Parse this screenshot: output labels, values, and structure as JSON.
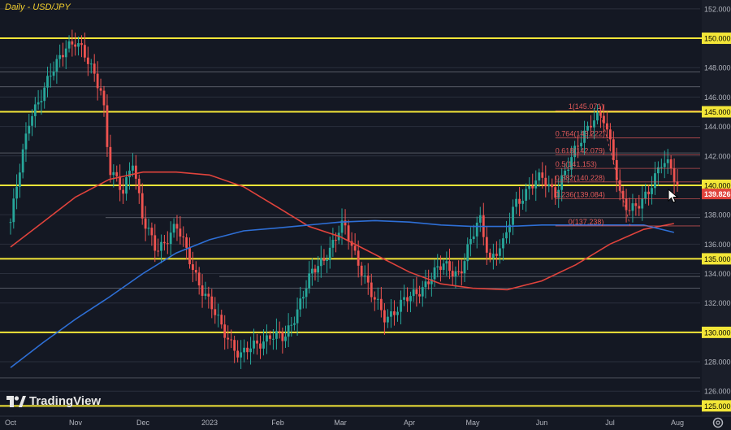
{
  "title": "Daily - USD/JPY",
  "brand": "TradingView",
  "colors": {
    "background": "#141823",
    "grid": "#2a2f3c",
    "up": "#27a69a",
    "down": "#ef5350",
    "level": "#f3e638",
    "ma_fast": "#e0433c",
    "ma_slow": "#2e6fd6",
    "fib": "#e35a5a",
    "axis_text": "#b2b5be"
  },
  "chart_data": {
    "type": "candlestick",
    "title": "Daily - USD/JPY",
    "x": [
      "Oct",
      "Nov",
      "Dec",
      "2023",
      "Feb",
      "Mar",
      "Apr",
      "May",
      "Jun",
      "Jul",
      "Aug"
    ],
    "y_ticks": [
      "152.000",
      "150.000",
      "148.000",
      "146.000",
      "145.000",
      "144.000",
      "142.000",
      "140.000",
      "139.826",
      "138.000",
      "136.000",
      "135.000",
      "134.000",
      "132.000",
      "130.000",
      "128.000",
      "126.000",
      "125.000"
    ],
    "ylim": [
      124.3,
      152.6
    ],
    "last_price": 139.826,
    "key_levels": [
      150.0,
      145.0,
      140.0,
      135.0,
      130.0,
      125.0
    ],
    "fibonacci": [
      {
        "label": "1(145.071)",
        "value": 145.071
      },
      {
        "label": "0.764(143.222)",
        "value": 143.222
      },
      {
        "label": "0.618(142.079)",
        "value": 142.079
      },
      {
        "label": "0.5(141.153)",
        "value": 141.153
      },
      {
        "label": "0.382(140.228)",
        "value": 140.228
      },
      {
        "label": "0.236(139.084)",
        "value": 139.084
      },
      {
        "label": "0(137.238)",
        "value": 137.238
      }
    ],
    "anchors": [
      {
        "x": 0.0,
        "y": 137.5
      },
      {
        "x": 0.3,
        "y": 144.8
      },
      {
        "x": 0.5,
        "y": 146.3
      },
      {
        "x": 0.85,
        "y": 149.6
      },
      {
        "x": 1.0,
        "y": 149.7
      },
      {
        "x": 1.25,
        "y": 147.9
      },
      {
        "x": 1.4,
        "y": 146.4
      },
      {
        "x": 1.5,
        "y": 141.0
      },
      {
        "x": 1.7,
        "y": 139.5
      },
      {
        "x": 1.85,
        "y": 141.9
      },
      {
        "x": 2.0,
        "y": 137.5
      },
      {
        "x": 2.2,
        "y": 135.6
      },
      {
        "x": 2.5,
        "y": 137.2
      },
      {
        "x": 2.7,
        "y": 135.0
      },
      {
        "x": 2.9,
        "y": 132.8
      },
      {
        "x": 3.1,
        "y": 131.0
      },
      {
        "x": 3.3,
        "y": 129.5
      },
      {
        "x": 3.45,
        "y": 128.3
      },
      {
        "x": 3.7,
        "y": 129.3
      },
      {
        "x": 3.9,
        "y": 129.8
      },
      {
        "x": 4.1,
        "y": 129.5
      },
      {
        "x": 4.3,
        "y": 131.5
      },
      {
        "x": 4.55,
        "y": 134.0
      },
      {
        "x": 4.85,
        "y": 135.8
      },
      {
        "x": 5.05,
        "y": 137.3
      },
      {
        "x": 5.25,
        "y": 135.0
      },
      {
        "x": 5.45,
        "y": 132.5
      },
      {
        "x": 5.65,
        "y": 131.0
      },
      {
        "x": 5.9,
        "y": 132.0
      },
      {
        "x": 6.1,
        "y": 132.6
      },
      {
        "x": 6.3,
        "y": 133.6
      },
      {
        "x": 6.55,
        "y": 134.6
      },
      {
        "x": 6.8,
        "y": 134.0
      },
      {
        "x": 7.0,
        "y": 136.5
      },
      {
        "x": 7.1,
        "y": 137.9
      },
      {
        "x": 7.25,
        "y": 135.0
      },
      {
        "x": 7.45,
        "y": 135.9
      },
      {
        "x": 7.6,
        "y": 138.8
      },
      {
        "x": 7.8,
        "y": 139.7
      },
      {
        "x": 8.0,
        "y": 140.5
      },
      {
        "x": 8.2,
        "y": 139.6
      },
      {
        "x": 8.4,
        "y": 141.3
      },
      {
        "x": 8.6,
        "y": 143.5
      },
      {
        "x": 8.75,
        "y": 144.6
      },
      {
        "x": 8.9,
        "y": 144.5
      },
      {
        "x": 9.05,
        "y": 142.0
      },
      {
        "x": 9.15,
        "y": 139.5
      },
      {
        "x": 9.3,
        "y": 138.2
      },
      {
        "x": 9.45,
        "y": 138.6
      },
      {
        "x": 9.6,
        "y": 140.0
      },
      {
        "x": 9.75,
        "y": 141.6
      },
      {
        "x": 9.9,
        "y": 141.1
      },
      {
        "x": 10.0,
        "y": 139.8
      }
    ],
    "sma_fast": [
      {
        "x": 0.0,
        "y": 135.8
      },
      {
        "x": 0.5,
        "y": 137.5
      },
      {
        "x": 1.0,
        "y": 139.2
      },
      {
        "x": 1.5,
        "y": 140.4
      },
      {
        "x": 2.0,
        "y": 140.9
      },
      {
        "x": 2.5,
        "y": 140.9
      },
      {
        "x": 3.0,
        "y": 140.7
      },
      {
        "x": 3.5,
        "y": 139.9
      },
      {
        "x": 4.0,
        "y": 138.5
      },
      {
        "x": 4.5,
        "y": 137.2
      },
      {
        "x": 5.0,
        "y": 136.5
      },
      {
        "x": 5.5,
        "y": 135.3
      },
      {
        "x": 6.0,
        "y": 134.1
      },
      {
        "x": 6.5,
        "y": 133.3
      },
      {
        "x": 7.0,
        "y": 133.0
      },
      {
        "x": 7.5,
        "y": 132.9
      },
      {
        "x": 8.0,
        "y": 133.5
      },
      {
        "x": 8.5,
        "y": 134.6
      },
      {
        "x": 9.0,
        "y": 136.0
      },
      {
        "x": 9.5,
        "y": 137.0
      },
      {
        "x": 9.95,
        "y": 137.4
      }
    ],
    "sma_slow": [
      {
        "x": 0.0,
        "y": 127.6
      },
      {
        "x": 0.5,
        "y": 129.3
      },
      {
        "x": 1.0,
        "y": 130.9
      },
      {
        "x": 1.5,
        "y": 132.4
      },
      {
        "x": 2.0,
        "y": 134.0
      },
      {
        "x": 2.5,
        "y": 135.4
      },
      {
        "x": 3.0,
        "y": 136.3
      },
      {
        "x": 3.5,
        "y": 136.9
      },
      {
        "x": 4.0,
        "y": 137.1
      },
      {
        "x": 4.5,
        "y": 137.3
      },
      {
        "x": 5.0,
        "y": 137.5
      },
      {
        "x": 5.5,
        "y": 137.6
      },
      {
        "x": 6.0,
        "y": 137.5
      },
      {
        "x": 6.5,
        "y": 137.3
      },
      {
        "x": 7.0,
        "y": 137.2
      },
      {
        "x": 7.5,
        "y": 137.2
      },
      {
        "x": 8.0,
        "y": 137.3
      },
      {
        "x": 8.5,
        "y": 137.3
      },
      {
        "x": 9.0,
        "y": 137.3
      },
      {
        "x": 9.5,
        "y": 137.3
      },
      {
        "x": 9.95,
        "y": 136.8
      }
    ]
  }
}
